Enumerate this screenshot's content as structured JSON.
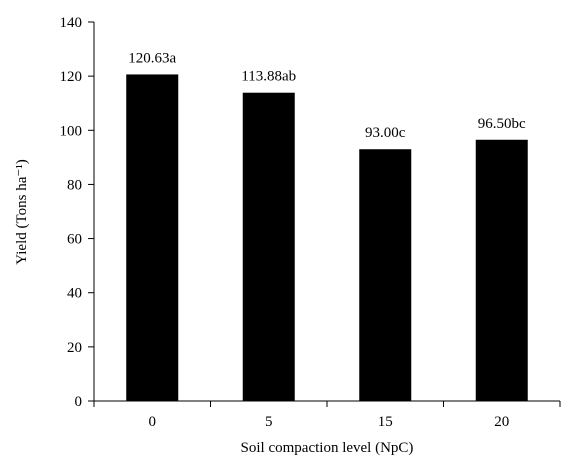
{
  "chart_data": {
    "type": "bar",
    "title": "",
    "xlabel": "Soil compaction level (NpC)",
    "ylabel": "Yield (Tons ha⁻¹)",
    "categories": [
      "0",
      "5",
      "15",
      "20"
    ],
    "values": [
      120.63,
      113.88,
      93.0,
      96.5
    ],
    "data_labels": [
      "120.63a",
      "113.88ab",
      "93.00c",
      "96.50bc"
    ],
    "ylim": [
      0,
      140
    ],
    "yticks": [
      0,
      20,
      40,
      60,
      80,
      100,
      120,
      140
    ],
    "grid": false,
    "legend": "none",
    "bar_color": "#000000"
  }
}
